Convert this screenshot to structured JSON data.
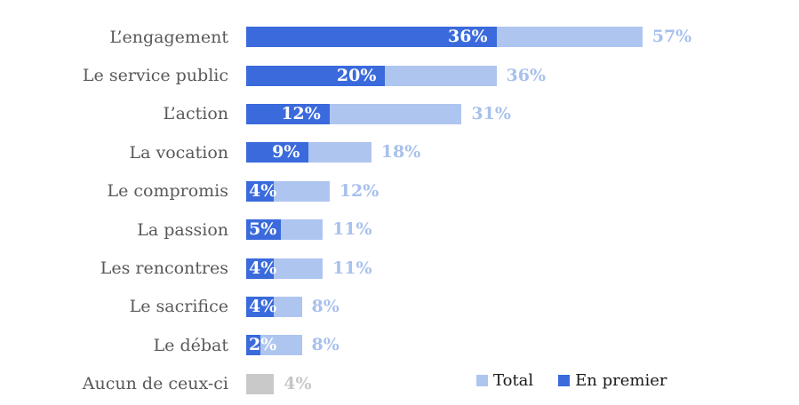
{
  "chart_data": {
    "type": "bar",
    "orientation": "horizontal",
    "overlay": true,
    "grid": false,
    "xlim": [
      0,
      60
    ],
    "value_suffix": "%",
    "category_label_color": "#595959",
    "categories": [
      "L’engagement",
      "Le service public",
      "L’action",
      "La vocation",
      "Le compromis",
      "La passion",
      "Les rencontres",
      "Le sacrifice",
      "Le débat",
      "Aucun de ceux-ci"
    ],
    "series": [
      {
        "name": "Total",
        "color": "#AEC5F0",
        "label_color": "#A7C0ED",
        "values": [
          57,
          36,
          31,
          18,
          12,
          11,
          11,
          8,
          8,
          4
        ]
      },
      {
        "name": "En premier",
        "color": "#3A6ADC",
        "label_color": "#FFFFFF",
        "values": [
          36,
          20,
          12,
          9,
          4,
          5,
          4,
          4,
          2,
          null
        ]
      }
    ],
    "neutral_category": {
      "index": 9,
      "bar_color": "#C9C9C9",
      "label_color": "#C6C6C6"
    },
    "legend": {
      "position": "bottom-right",
      "entries": [
        "Total",
        "En premier"
      ]
    }
  }
}
